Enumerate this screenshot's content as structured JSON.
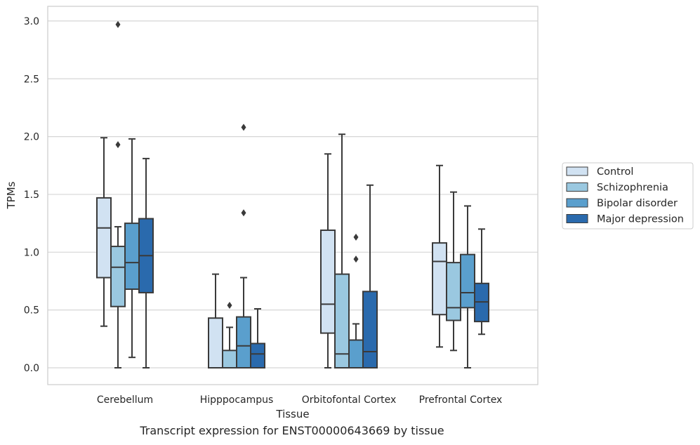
{
  "chart_data": {
    "type": "box",
    "xlabel": "Tissue",
    "ylabel": "TPMs",
    "ylim": [
      -0.14,
      3.12
    ],
    "yticks": [
      0.0,
      0.5,
      1.0,
      1.5,
      2.0,
      2.5,
      3.0
    ],
    "ytick_labels": [
      "0.0",
      "0.5",
      "1.0",
      "1.5",
      "2.0",
      "2.5",
      "3.0"
    ],
    "grid": "horizontal",
    "legend_position": "right-outside",
    "categories": [
      "Cerebellum",
      "Hipppocampus",
      "Orbitofontal Cortex",
      "Prefrontal Cortex"
    ],
    "series": [
      {
        "name": "Control",
        "color": "#d1e2f2",
        "boxes": [
          {
            "whislo": 0.36,
            "q1": 0.78,
            "med": 1.21,
            "q3": 1.47,
            "whishi": 1.99,
            "fliers": []
          },
          {
            "whislo": 0.0,
            "q1": 0.0,
            "med": 0.0,
            "q3": 0.43,
            "whishi": 0.81,
            "fliers": []
          },
          {
            "whislo": 0.0,
            "q1": 0.3,
            "med": 0.55,
            "q3": 1.19,
            "whishi": 1.85,
            "fliers": []
          },
          {
            "whislo": 0.18,
            "q1": 0.46,
            "med": 0.92,
            "q3": 1.08,
            "whishi": 1.75,
            "fliers": []
          }
        ]
      },
      {
        "name": "Schizophrenia",
        "color": "#9ac8e0",
        "boxes": [
          {
            "whislo": 0.0,
            "q1": 0.53,
            "med": 0.87,
            "q3": 1.05,
            "whishi": 1.22,
            "fliers": [
              1.93,
              2.97
            ]
          },
          {
            "whislo": 0.0,
            "q1": 0.0,
            "med": 0.0,
            "q3": 0.15,
            "whishi": 0.35,
            "fliers": [
              0.54
            ]
          },
          {
            "whislo": 0.0,
            "q1": 0.0,
            "med": 0.12,
            "q3": 0.81,
            "whishi": 2.02,
            "fliers": []
          },
          {
            "whislo": 0.15,
            "q1": 0.41,
            "med": 0.52,
            "q3": 0.91,
            "whishi": 1.52,
            "fliers": []
          }
        ]
      },
      {
        "name": "Bipolar disorder",
        "color": "#5a9fcd",
        "boxes": [
          {
            "whislo": 0.09,
            "q1": 0.68,
            "med": 0.91,
            "q3": 1.25,
            "whishi": 1.98,
            "fliers": []
          },
          {
            "whislo": 0.0,
            "q1": 0.0,
            "med": 0.19,
            "q3": 0.44,
            "whishi": 0.78,
            "fliers": [
              1.34,
              2.08
            ]
          },
          {
            "whislo": 0.0,
            "q1": 0.0,
            "med": 0.0,
            "q3": 0.24,
            "whishi": 0.38,
            "fliers": [
              0.94,
              1.13
            ]
          },
          {
            "whislo": 0.0,
            "q1": 0.52,
            "med": 0.65,
            "q3": 0.98,
            "whishi": 1.4,
            "fliers": []
          }
        ]
      },
      {
        "name": "Major depression",
        "color": "#2a6aad",
        "boxes": [
          {
            "whislo": 0.0,
            "q1": 0.65,
            "med": 0.97,
            "q3": 1.29,
            "whishi": 1.81,
            "fliers": []
          },
          {
            "whislo": 0.0,
            "q1": 0.0,
            "med": 0.12,
            "q3": 0.21,
            "whishi": 0.51,
            "fliers": []
          },
          {
            "whislo": 0.0,
            "q1": 0.0,
            "med": 0.14,
            "q3": 0.66,
            "whishi": 1.58,
            "fliers": []
          },
          {
            "whislo": 0.29,
            "q1": 0.4,
            "med": 0.57,
            "q3": 0.73,
            "whishi": 1.2,
            "fliers": []
          }
        ]
      }
    ]
  },
  "caption": "Transcript expression for ENST00000643669 by tissue"
}
